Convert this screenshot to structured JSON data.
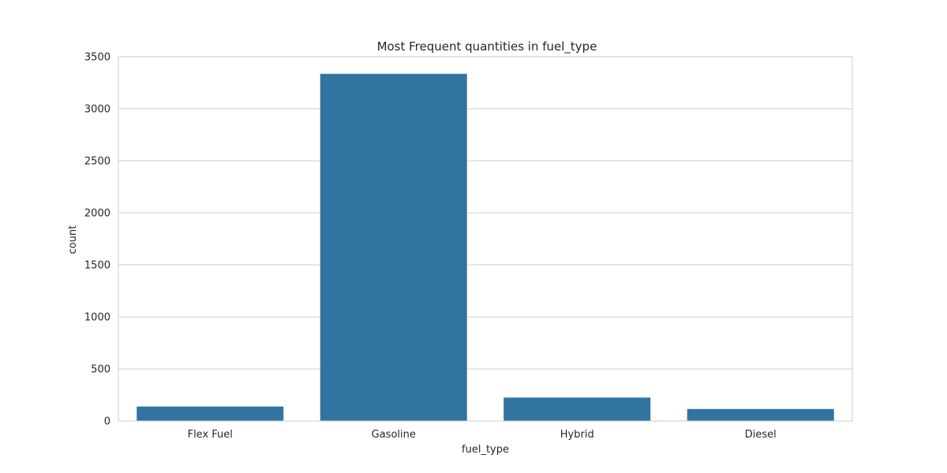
{
  "chart_data": {
    "type": "bar",
    "title": "Most Frequent quantities in fuel_type",
    "xlabel": "fuel_type",
    "ylabel": "count",
    "categories": [
      "Flex Fuel",
      "Gasoline",
      "Hybrid",
      "Diesel"
    ],
    "values": [
      139,
      3336,
      225,
      115
    ],
    "ylim": [
      0,
      3500
    ],
    "yticks": [
      0,
      500,
      1000,
      1500,
      2000,
      2500,
      3000,
      3500
    ],
    "grid": true,
    "legend": "none",
    "bar_color": "#3274a1",
    "grid_color": "#cccccc",
    "spine_color": "#cccccc"
  }
}
